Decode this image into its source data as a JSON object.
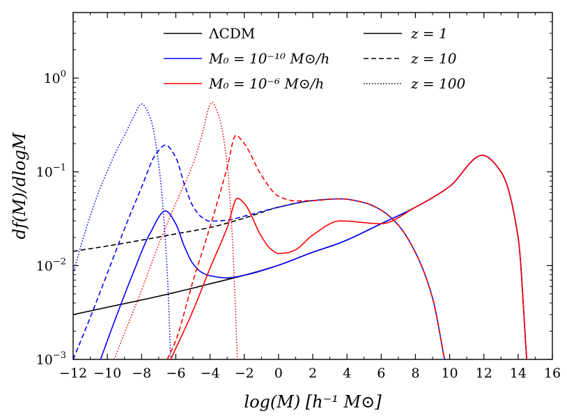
{
  "chart_data": {
    "type": "line",
    "title": "",
    "xlabel": "log(M) [h⁻¹ M⊙]",
    "ylabel": "df(M)/dlogM",
    "xlim": [
      -12,
      16
    ],
    "ylim": [
      0.001,
      5
    ],
    "yscale": "log",
    "grid": false,
    "legend": "upper-center",
    "x_ticks": [
      -12,
      -10,
      -8,
      -6,
      -4,
      -2,
      0,
      2,
      4,
      6,
      8,
      10,
      12,
      14,
      16
    ],
    "x_tick_labels": [
      "−12",
      "−10",
      "−8",
      "−6",
      "−4",
      "−2",
      "0",
      "2",
      "4",
      "6",
      "8",
      "10",
      "12",
      "14",
      "16"
    ],
    "y_ticks": [
      {
        "value": 0.001,
        "base": "10",
        "exp": "−3"
      },
      {
        "value": 0.01,
        "base": "10",
        "exp": "−2"
      },
      {
        "value": 0.1,
        "base": "10",
        "exp": "−1"
      },
      {
        "value": 1,
        "base": "10",
        "exp": "0"
      }
    ],
    "legend_models": [
      {
        "label": "ΛCDM",
        "color": "#000000"
      },
      {
        "label": "M₀ = 10⁻¹⁰ M⊙/h",
        "color": "#0000ff"
      },
      {
        "label": "M₀ = 10⁻⁶ M⊙/h",
        "color": "#ff0000"
      }
    ],
    "legend_redshifts": [
      {
        "label": "z = 1",
        "style": "solid"
      },
      {
        "label": "z = 10",
        "style": "dashed"
      },
      {
        "label": "z = 100",
        "style": "dotted"
      }
    ],
    "series": [
      {
        "name": "LCDM z=1",
        "color": "#000000",
        "style": "solid",
        "x": [
          -12,
          -10,
          -8,
          -6,
          -4,
          -2,
          0,
          2,
          3.6,
          6,
          8,
          10,
          11.9,
          13,
          14,
          14.5
        ],
        "y": [
          0.003,
          0.0036,
          0.0043,
          0.0052,
          0.0064,
          0.0079,
          0.0101,
          0.0139,
          0.0175,
          0.028,
          0.042,
          0.07,
          0.15,
          0.1,
          0.02,
          0.001
        ]
      },
      {
        "name": "LCDM z=10",
        "color": "#000000",
        "style": "dashed",
        "x": [
          -12,
          -10,
          -8,
          -6,
          -4,
          -2,
          0,
          2,
          3.6,
          5,
          6,
          7,
          8,
          9,
          9.7
        ],
        "y": [
          0.0142,
          0.0162,
          0.0187,
          0.0218,
          0.0255,
          0.0321,
          0.042,
          0.0494,
          0.0515,
          0.047,
          0.039,
          0.027,
          0.0138,
          0.0045,
          0.001
        ]
      },
      {
        "name": "M0=1e-10 z=1",
        "color": "#0000ff",
        "style": "solid",
        "x": [
          -10.4,
          -9.5,
          -8.5,
          -7.5,
          -6.6,
          -6,
          -5.5,
          -5,
          -4.5,
          -4,
          -3,
          -2,
          0,
          2,
          3.6,
          6,
          8,
          10,
          11.9,
          13,
          14,
          14.5
        ],
        "y": [
          0.001,
          0.0028,
          0.0083,
          0.0222,
          0.0383,
          0.0278,
          0.016,
          0.0105,
          0.0085,
          0.0078,
          0.0074,
          0.0079,
          0.0101,
          0.0139,
          0.0175,
          0.028,
          0.042,
          0.07,
          0.15,
          0.1,
          0.02,
          0.001
        ]
      },
      {
        "name": "M0=1e-10 z=10",
        "color": "#0000ff",
        "style": "dashed",
        "x": [
          -12,
          -11,
          -10,
          -9,
          -8,
          -7.2,
          -6.6,
          -6,
          -5.5,
          -5,
          -4.5,
          -4,
          -3,
          -2,
          0,
          2,
          3.6,
          5,
          6,
          7,
          8,
          9,
          9.7
        ],
        "y": [
          0.001,
          0.0028,
          0.0083,
          0.0247,
          0.0686,
          0.151,
          0.193,
          0.142,
          0.0735,
          0.0431,
          0.033,
          0.0298,
          0.0305,
          0.0337,
          0.042,
          0.0494,
          0.0515,
          0.047,
          0.039,
          0.027,
          0.0138,
          0.0045,
          0.001
        ]
      },
      {
        "name": "M0=1e-10 z=100",
        "color": "#0000ff",
        "style": "dotted",
        "x": [
          -12,
          -11.5,
          -11,
          -10.5,
          -10,
          -9.5,
          -9,
          -8.5,
          -8,
          -7.5,
          -7,
          -6.5,
          -6.3
        ],
        "y": [
          0.0082,
          0.0174,
          0.0339,
          0.0616,
          0.102,
          0.163,
          0.244,
          0.375,
          0.53,
          0.38,
          0.12,
          0.0085,
          0.001
        ]
      },
      {
        "name": "M0=1e-6 z=1",
        "color": "#ff0000",
        "style": "solid",
        "x": [
          -6.3,
          -5,
          -4,
          -3,
          -2.4,
          -2,
          -1,
          -0.5,
          0,
          0.5,
          1,
          2,
          3.6,
          6,
          8,
          10,
          11.9,
          13,
          14,
          14.5
        ],
        "y": [
          0.001,
          0.0033,
          0.0094,
          0.0254,
          0.0523,
          0.046,
          0.0205,
          0.0153,
          0.0135,
          0.0137,
          0.0148,
          0.0212,
          0.03,
          0.028,
          0.042,
          0.07,
          0.15,
          0.1,
          0.02,
          0.001
        ]
      },
      {
        "name": "M0=1e-6 z=10",
        "color": "#ff0000",
        "style": "dashed",
        "x": [
          -6.5,
          -6,
          -5,
          -4,
          -3,
          -2.5,
          -2,
          -1,
          0,
          1,
          2,
          3.6,
          5,
          6,
          7,
          8,
          9,
          9.7
        ],
        "y": [
          0.001,
          0.0016,
          0.0068,
          0.026,
          0.111,
          0.245,
          0.2,
          0.092,
          0.055,
          0.049,
          0.0494,
          0.0515,
          0.047,
          0.039,
          0.027,
          0.0138,
          0.0045,
          0.001
        ]
      },
      {
        "name": "M0=1e-6 z=100",
        "color": "#ff0000",
        "style": "dotted",
        "x": [
          -9.6,
          -9,
          -8,
          -7,
          -6,
          -5,
          -4.5,
          -3.9,
          -3.5,
          -3,
          -2.7,
          -2.4
        ],
        "y": [
          0.001,
          0.0019,
          0.0055,
          0.0168,
          0.0465,
          0.121,
          0.237,
          0.55,
          0.4,
          0.12,
          0.02,
          0.001
        ]
      }
    ]
  }
}
